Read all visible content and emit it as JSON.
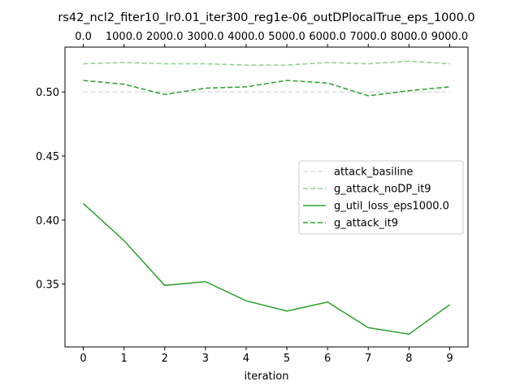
{
  "chart_data": {
    "type": "line",
    "title": "rs42_ncl2_fiter10_lr0.01_iter300_reg1e-06_outDPlocalTrue_eps_1000.0",
    "xlabel": "iteration",
    "ylabel": "",
    "x": [
      0,
      1,
      2,
      3,
      4,
      5,
      6,
      7,
      8,
      9
    ],
    "xlim": [
      -0.45,
      9.45
    ],
    "ylim": [
      0.301,
      0.535
    ],
    "x_ticks": [
      "0",
      "1",
      "2",
      "3",
      "4",
      "5",
      "6",
      "7",
      "8",
      "9"
    ],
    "x_top_ticks": [
      "0.0",
      "1000.0",
      "2000.0",
      "3000.0",
      "4000.0",
      "5000.0",
      "6000.0",
      "7000.0",
      "8000.0",
      "9000.0"
    ],
    "y_ticks": [
      0.35,
      0.4,
      0.45,
      0.5
    ],
    "y_tick_labels": [
      "0.35",
      "0.40",
      "0.45",
      "0.50"
    ],
    "grid": false,
    "legend_position": "center-right",
    "series": [
      {
        "name": "attack_basiline",
        "color": "#dddddd",
        "dash": "dashed",
        "values": [
          0.5,
          0.5,
          0.5,
          0.5,
          0.5,
          0.5,
          0.5,
          0.5,
          0.5,
          0.5
        ]
      },
      {
        "name": "g_attack_noDP_it9",
        "color": "#8fd18f",
        "dash": "dashed",
        "values": [
          0.522,
          0.523,
          0.522,
          0.522,
          0.521,
          0.521,
          0.523,
          0.522,
          0.524,
          0.522
        ]
      },
      {
        "name": "g_util_loss_eps1000.0",
        "color": "#2ca02c",
        "dash": "solid",
        "values": [
          0.413,
          0.384,
          0.349,
          0.352,
          0.337,
          0.329,
          0.336,
          0.316,
          0.311,
          0.334
        ]
      },
      {
        "name": "g_attack_it9",
        "color": "#2ca02c",
        "dash": "dashed",
        "values": [
          0.509,
          0.506,
          0.498,
          0.503,
          0.504,
          0.509,
          0.507,
          0.497,
          0.501,
          0.504
        ]
      }
    ]
  }
}
